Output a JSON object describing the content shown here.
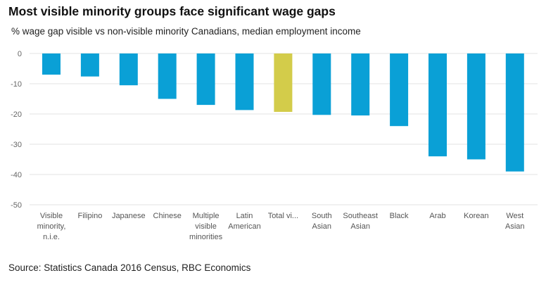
{
  "title": "Most visible minority groups face significant wage gaps",
  "subtitle": "% wage gap visible vs non-visible minority Canadians,  median employment income",
  "source": "Source: Statistics Canada 2016 Census, RBC Economics",
  "colors": {
    "bar": "#0aa0d6",
    "highlight": "#d3cc4a",
    "grid": "#e3e3e3"
  },
  "chart_data": {
    "type": "bar",
    "title": "Most visible minority groups face significant wage gaps",
    "subtitle": "% wage gap visible vs non-visible minority Canadians,  median employment income",
    "categories": [
      "Visible minority, n.i.e.",
      "Filipino",
      "Japanese",
      "Chinese",
      "Multiple visible minorities",
      "Latin American",
      "Total vi...",
      "South Asian",
      "Southeast Asian",
      "Black",
      "Arab",
      "Korean",
      "West Asian"
    ],
    "category_lines": [
      [
        "Visible",
        "minority,",
        "n.i.e."
      ],
      [
        "Filipino"
      ],
      [
        "Japanese"
      ],
      [
        "Chinese"
      ],
      [
        "Multiple",
        "visible",
        "minorities"
      ],
      [
        "Latin",
        "American"
      ],
      [
        "Total vi..."
      ],
      [
        "South",
        "Asian"
      ],
      [
        "Southeast",
        "Asian"
      ],
      [
        "Black"
      ],
      [
        "Arab"
      ],
      [
        "Korean"
      ],
      [
        "West",
        "Asian"
      ]
    ],
    "values": [
      -7,
      -7.6,
      -10.5,
      -15,
      -17,
      -18.7,
      -19.3,
      -20.3,
      -20.5,
      -24,
      -34,
      -35,
      -39
    ],
    "highlight_index": 6,
    "yticks": [
      0,
      -10,
      -20,
      -30,
      -40,
      -50
    ],
    "ylim": [
      -50,
      0
    ],
    "grid": true,
    "legend": "none"
  }
}
